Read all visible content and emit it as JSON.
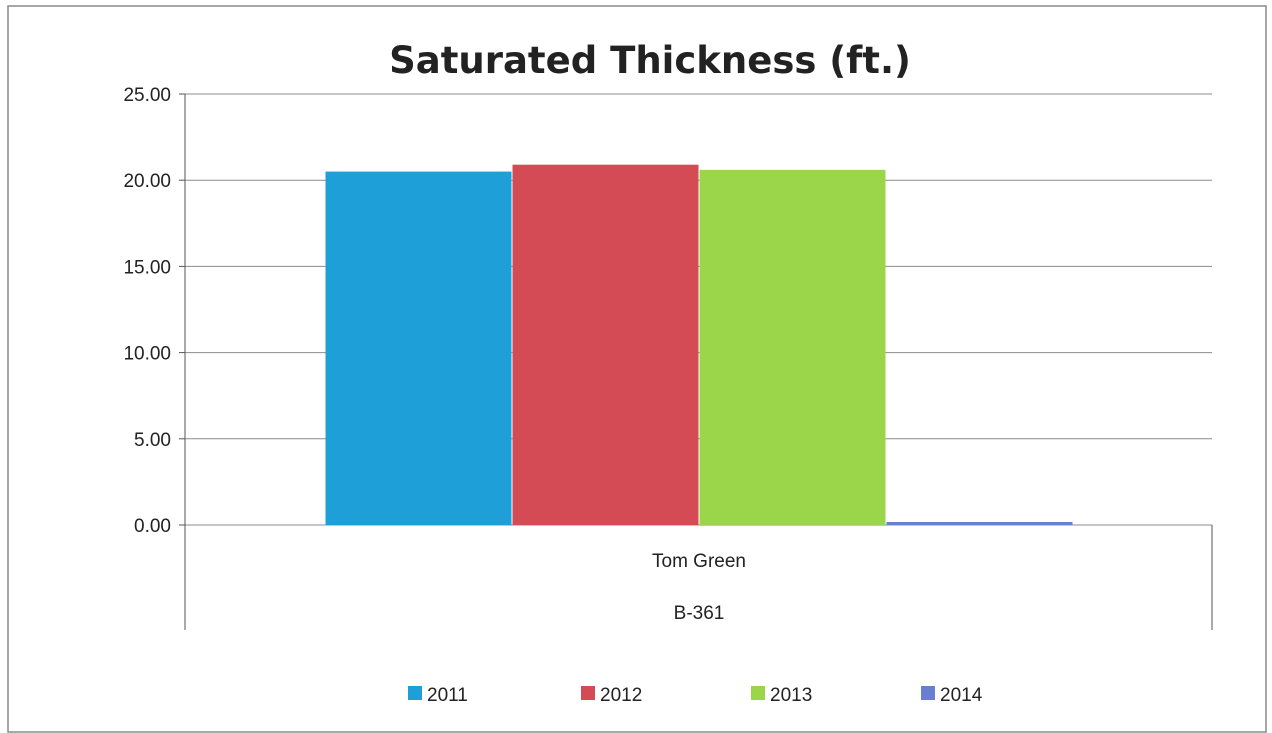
{
  "chart_data": {
    "type": "bar",
    "title": "Saturated Thickness (ft.)",
    "categories": [
      "Tom Green"
    ],
    "category_group": "B-361",
    "series": [
      {
        "name": "2011",
        "values": [
          20.5
        ],
        "color": "#1f9fd7"
      },
      {
        "name": "2012",
        "values": [
          20.9
        ],
        "color": "#d44b55"
      },
      {
        "name": "2013",
        "values": [
          20.6
        ],
        "color": "#9bd54a"
      },
      {
        "name": "2014",
        "values": [
          0.1
        ],
        "color": "#6a7fcf"
      }
    ],
    "ylim": [
      0,
      25
    ],
    "yticks": [
      "0.00",
      "5.00",
      "10.00",
      "15.00",
      "20.00",
      "25.00"
    ],
    "grid": true,
    "legend_position": "bottom"
  }
}
